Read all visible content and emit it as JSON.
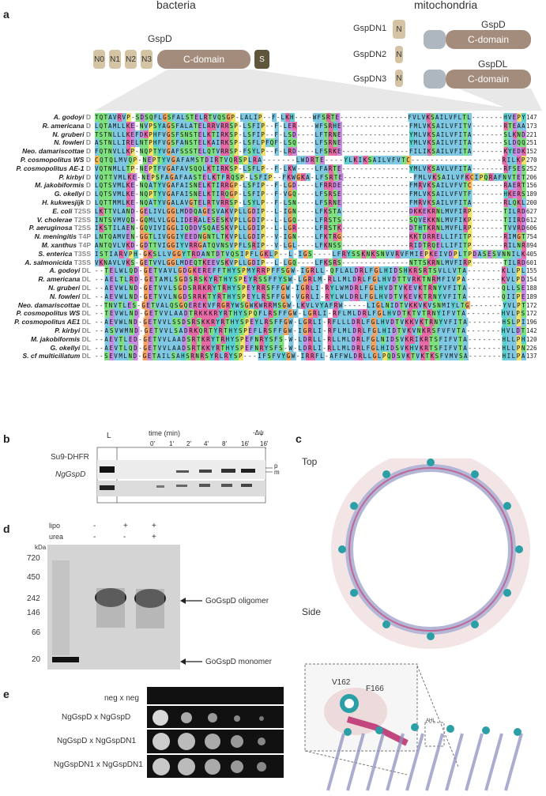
{
  "panel_a": {
    "letter": "a",
    "header_bacteria": "bacteria",
    "header_mito": "mitochondria",
    "gspd_title": "GspD",
    "domains": [
      "N0",
      "N1",
      "N2",
      "N3"
    ],
    "cdomain": "C-domain",
    "sdomain": "S",
    "mito_labels": [
      "GspDN1",
      "GspDN2",
      "GspDN3"
    ],
    "mito_n": "N",
    "mito_gspd": "GspD",
    "mito_gspdl": "GspDL",
    "rows": [
      {
        "sp": "A. godoyi",
        "tag": "D",
        "seq": "TQTAVRVP-SDSQFLGSFALSTELRTVQSGP-LALIP--F-LKH----WFSRTE---------------FVLVKSAILVFLTL-------HVEPY",
        "num": "147"
      },
      {
        "sp": "R. americana",
        "tag": "D",
        "seq": "LQTAMLLKE-NVPSYAGSFALATELRRVRRSP-LSFIP--F-LER----WFSRHE---------------FMLVKSAILVFITV-------RTEAA",
        "num": "173"
      },
      {
        "sp": "N. gruberi",
        "tag": "D",
        "seq": "TSTNLLLKEFDKPHFVGSFSNSTELKTIRKSP-LSFIP--F-LSD----LFTRNE---------------YMLVKSAILVFITA-------SLKND",
        "num": "221"
      },
      {
        "sp": "N. fowleri",
        "tag": "D",
        "seq": "ASTNLLIRELNTPHFVGSFANSTELKAIRKSP-LSFLPFQF-LSQ----LFSRNE---------------YMLVKSAILVFITA-------SLDQQ",
        "num": "251"
      },
      {
        "sp": "Neo. damariscottae",
        "tag": "D",
        "seq": "FQTNVLLKP-NQPTYVGAFSSSTELQTVRRSP-FSYLP--F-LRD----LFSRKE---------------FILIKSAILVFITA-------KYEDK",
        "num": "152"
      },
      {
        "sp": "P. cosmopolitus WS",
        "tag": "D",
        "seq": "CQTQLMVQP-NEPTYVGAFAMSTDIRTVQRSPLRA-------LWDRTE----YLKIKSAILVFVTC-------------------RILKP",
        "num": "270"
      },
      {
        "sp": "P. cosmopolitus AE-1",
        "tag": "D",
        "seq": "VQTNMLLTP-NEPTFVGAFAVSQQLKTIRKSP-LSFLP--F-LKW----LFARTE---------------YMLVKSAVLVFITA-------RFSES",
        "num": "252"
      },
      {
        "sp": "P. kirbyi",
        "tag": "D",
        "seq": "VQTTVMLKE-NEPSFAGAFAASTELKTFRQSP-LSFIP--FKWGKA-LFSRTE---------------FMLVKSAILVFKCIPQRAFNVTET",
        "num": "206"
      },
      {
        "sp": "M. jakobiformis",
        "tag": "D",
        "seq": "LQTSVMLKE-NQATYVGAFAISNELKTIRRGP-LSFIP--F-LGD----LFRRDE---------------FMRVKSAILVFVTC-------RAERT",
        "num": "156"
      },
      {
        "sp": "G. okellyi",
        "tag": "D",
        "seq": "LQTSVMLKE-NQPTYVGAFAISNELKTIRQGP-LSFIP--F-VGQ----LFSRSE---------------FMLVKSAILVFVTF-------HKERS",
        "num": "189"
      },
      {
        "sp": "H. kukwesjijk",
        "tag": "D",
        "seq": "LQTTMMLKE-NQATYVGALAVGTELRTVRRSP-LSYLP--F-LSN----LFSRNE---------------FMRVKSAILVFITA-------RLQKL",
        "num": "200"
      },
      {
        "sp": "E. coli",
        "tag": "T2SS",
        "seq": "LKTTVLAND-GELIVLGGLMDDQAGESVAKVPLLGDIP--L-IGN----LFKSTA---------------DKKEKRNLMVFIRP-------TILRD",
        "num": "627"
      },
      {
        "sp": "V. cholerae",
        "tag": "T2SS",
        "seq": "INTSVMVQD-GQMLVLGGLIDERALESESKVPLLGDIP--L-LGQ----LFRSTS---------------SQVEKKNLMVFIKP-------TIIRD",
        "num": "612"
      },
      {
        "sp": "P. aeruginosa",
        "tag": "T2SS",
        "seq": "IKSTILAEN-GQVIVIGGLIQDDVSQAESKVPLLGDIP--L-LGR----LFRSTK---------------DTHTKRNLMVFLRP-------TVVRD",
        "num": "606"
      },
      {
        "sp": "N. meningitis",
        "tag": "T4P",
        "seq": "LNTQAMVEN-GGTLIVGGIYEEDNGNTLTKVPLLGDIP--V-IGN----LFKTRG---------------KKTDRRELLIFITP-------RIMGT",
        "num": "754"
      },
      {
        "sp": "M. xanthus",
        "tag": "T4P",
        "seq": "ANTQVLVKD-GDTTVIGGIYVRRGATQVNSVPFLSRIP--V-LGL----LFKNSS---------------RIDTRQELLIFITP-------RILNR",
        "num": "894"
      },
      {
        "sp": "S. enterica",
        "tag": "T3SS",
        "seq": "ISTIARVPH-GKSLLVGGYTRDANTDTVQSIPFLGKLP--L-IGS----LFRYSSKNKSNVVRVFMIEPKEIVDPLTPDASESVNNILK",
        "num": "405"
      },
      {
        "sp": "A. salmonicida",
        "tag": "T3SS",
        "seq": "VKNAVLVKS-GETVVLGGLMDEQTKEEVSKVPLLGDIP--L-LGQ----LFKSRS---------------NTTSKRNLMVFIRP-------TILRD",
        "num": "601"
      },
      {
        "sp": "A. godoyi",
        "tag": "DL",
        "seq": "--TELWLQD-GETVAVLGDGKEREFFTHYSPMYRRPFFSGW-IGRLL-QFLALDRLFGLHIDSHKRSRTSVLLVTA-------KLLPL",
        "num": "155"
      },
      {
        "sp": "R. americana",
        "tag": "DL",
        "seq": "--AELTLRD-GETAMLSGDSRSKYRTHYSPEYRSSFFYSW-LGRLM-RLLMLDRLFGLHVDTTVRKTNRMFIVPA-------KVLPD",
        "num": "154"
      },
      {
        "sp": "N. gruberi",
        "tag": "DL",
        "seq": "--AEVWLND-GETVVLSGDSRRKRYTRHYSPEYRRSFFGW-IGRLI-RYLWMDRLFGLHVDTVKEVKTRNYVFITA-------QLLSE",
        "num": "188"
      },
      {
        "sp": "N. fowleri",
        "tag": "DL",
        "seq": "--AEVWLND-GETVVLNGDSRRKTYRTHYSPEYLRSFFGW-VGRLI-RYLWLDRLFGLHVDTVKEVKTRNYVFITA-------QIIPE",
        "num": "189"
      },
      {
        "sp": "Neo. damariscottae",
        "tag": "DL",
        "seq": "--TNVTLES-GETVALQSGQEREKVFRGRYWSGWKWRRMSGW-LKVLVYAFRW-----LIGLNIDTVKKVKVSNMIYLTG-------YVLPT",
        "num": "172"
      },
      {
        "sp": "P. cosmopolitus WS",
        "tag": "DL",
        "seq": "--TEVWLND-GETVVLAADTRKKKRYRTHYSPQFLRSFFGW-LGRLI-RFLMLDRLFGLHVDTKTVTRNYIFVTA-------HVLPS",
        "num": "172"
      },
      {
        "sp": "P. cosmopolitus AE1",
        "tag": "DL",
        "seq": "--AEVWLND-GETVVLSSDSRSKKRYRTHYSPEYLRSFFGW-LGRLI-RFLLLDRLFGLHVDTVKKVKTRNYVFITA-------HSLPI",
        "num": "196"
      },
      {
        "sp": "P. kirbyi",
        "tag": "DL",
        "seq": "--ASVWMND-GETVVLSADRKQRTYRTHYSPEFLRSFFGW-IGRLI-RFLMLDRLFGLHIDTVKVNKRSFVFVTA-------HVLDT",
        "num": "142"
      },
      {
        "sp": "M. jakobiformis",
        "tag": "DL",
        "seq": "--AEVTLED-GETVVLAADSRTKRYTRHYSPEFNRYSFS-W-LDRLL-RLLMLDRLFGLNIDSVKRIKRTSFIFVTA-------HLLPH",
        "num": "120"
      },
      {
        "sp": "G. okellyi",
        "tag": "DL",
        "seq": "--AEVTLQD-GETVVLAADSRTKKYRTHYSPEFNRYSFS-W-LDRLI-RLLMLDRLFGLHIDSVKHVKRTSFIFVTA-------HLLPN",
        "num": "226"
      },
      {
        "sp": "S. cf multiciliatum",
        "tag": "DL",
        "seq": "--SEVMLND-GETAILSAHSRNRSYRLRYSP---IFSFVYGW-IRRFL-AFFWLDRLLGLPQDSVKTVKTKSFVMVSA-------HILPA",
        "num": "137"
      }
    ]
  },
  "panel_b": {
    "letter": "b",
    "time_label": "time (min)",
    "lane_L": "L",
    "times": [
      "0'",
      "1'",
      "2'",
      "4'",
      "8'",
      "16'",
      "16'"
    ],
    "dpsi": "-Δψ",
    "row1": "Su9-DHFR",
    "row2": "NgGspD",
    "pm": [
      "p",
      "m"
    ]
  },
  "panel_c": {
    "letter": "c",
    "top": "Top",
    "side": "Side",
    "v162": "V162",
    "f166": "F166",
    "ahl": "AHL"
  },
  "panel_d": {
    "letter": "d",
    "lipo": "lipo",
    "urea": "urea",
    "lipo_vals": [
      "-",
      "+",
      "+"
    ],
    "urea_vals": [
      "-",
      "-",
      "+"
    ],
    "kda": "kDa",
    "markers": [
      "720",
      "450",
      "242",
      "146",
      "66",
      "20"
    ],
    "oligomer_label": "GoGspD oligomer",
    "monomer_label": "GoGspD monomer"
  },
  "panel_e": {
    "letter": "e",
    "rows": [
      "neg x neg",
      "NgGspD x NgGspD",
      "NgGspD x NgGspDN1",
      "NgGspDN1 x NgGspDN1"
    ]
  }
}
